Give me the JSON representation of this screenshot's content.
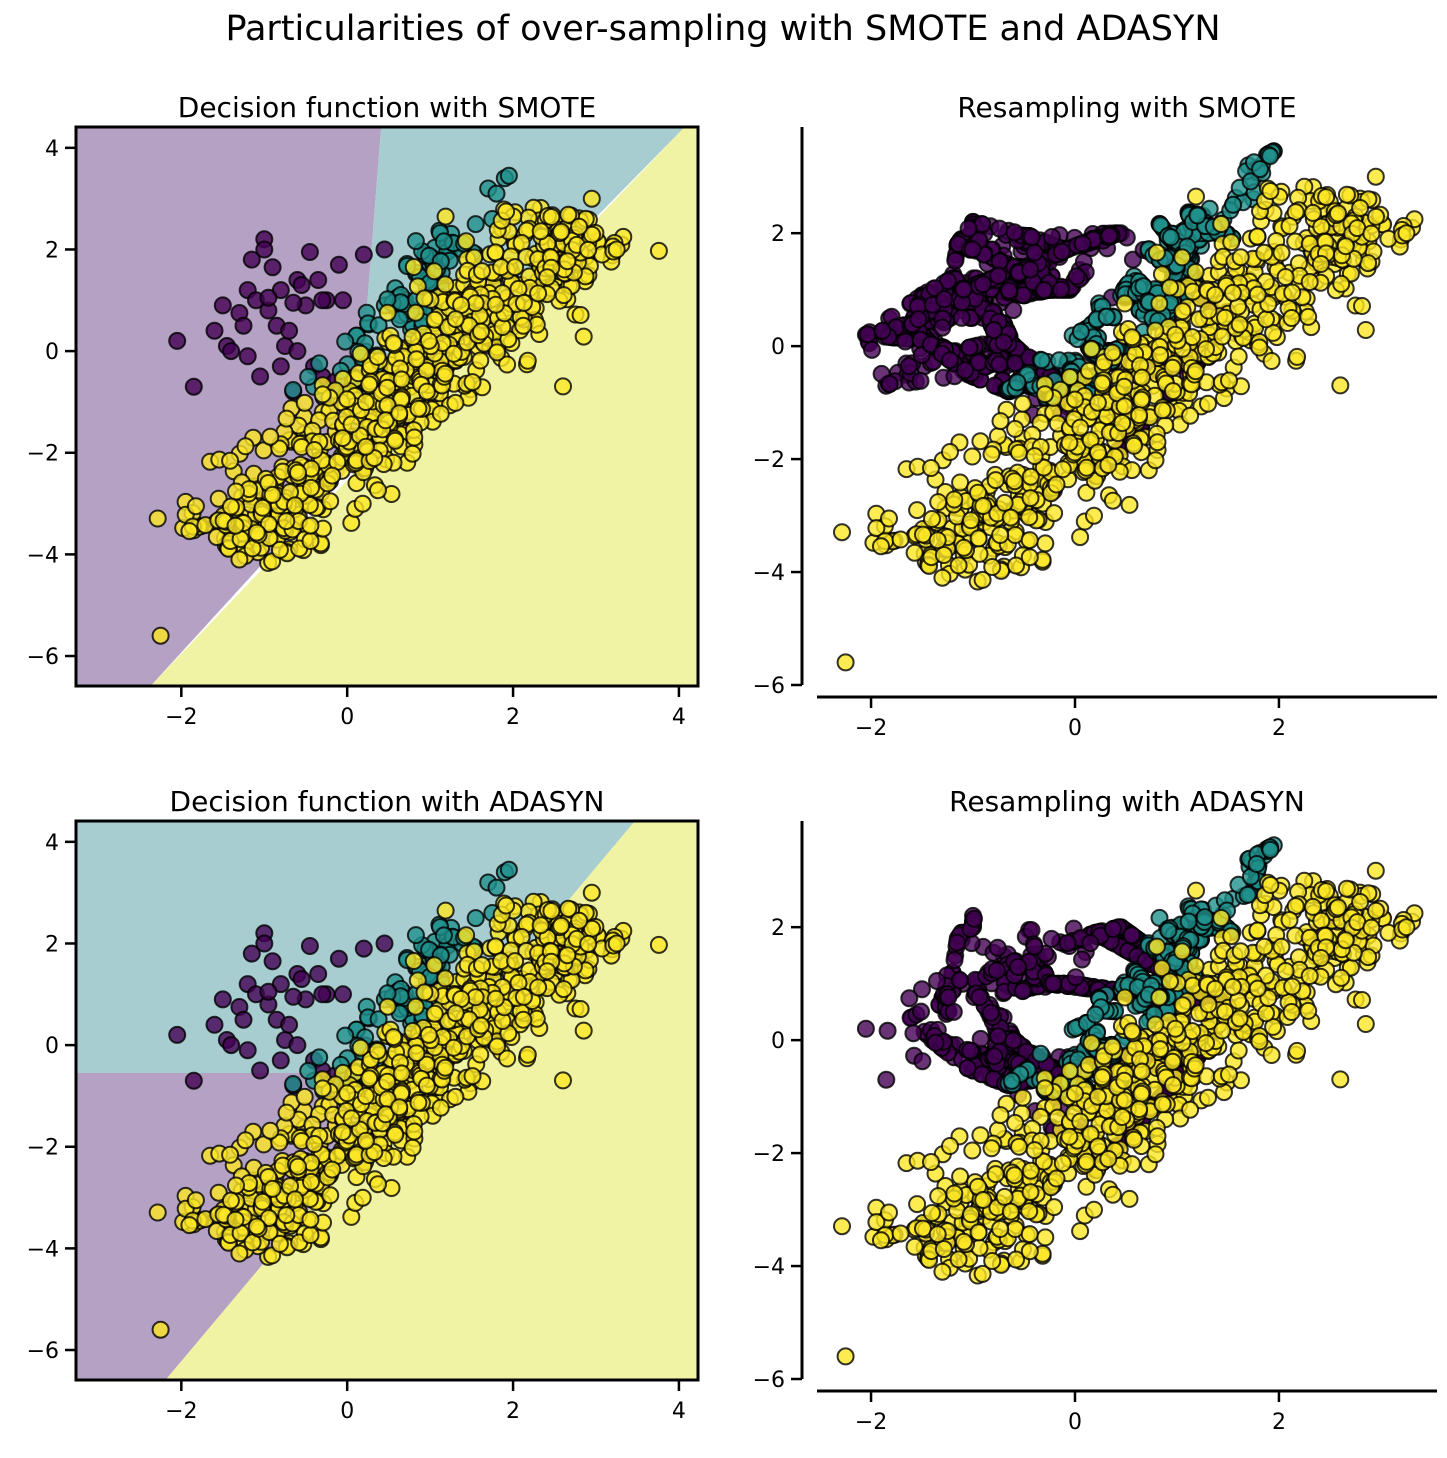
{
  "figure_title": "Particularities of over-sampling with SMOTE and ADASYN",
  "colors": {
    "class0": "#440154",
    "class1": "#21918c",
    "class2": "#fde725",
    "region0": "#b4a1c4",
    "region1": "#a7cdd0",
    "region2": "#f0f3a3",
    "edge": "#000000"
  },
  "chart_data": [
    {
      "type": "scatter",
      "kind": "decision",
      "title": "Decision function with SMOTE",
      "sampler": "none",
      "xlim": [
        -3.27,
        4.23
      ],
      "ylim": [
        -6.59,
        4.41
      ],
      "xticks": [
        {
          "v": -2,
          "label": "−2"
        },
        {
          "v": 0,
          "label": "0"
        },
        {
          "v": 2,
          "label": "2"
        },
        {
          "v": 4,
          "label": "4"
        }
      ],
      "yticks": [
        {
          "v": 4,
          "label": "4"
        },
        {
          "v": 2,
          "label": "2"
        },
        {
          "v": 0,
          "label": "0"
        },
        {
          "v": -2,
          "label": "−2"
        },
        {
          "v": -4,
          "label": "−4"
        },
        {
          "v": -6,
          "label": "−6"
        }
      ],
      "regions": [
        {
          "cls": 0,
          "polygon": [
            [
              -3.27,
              4.41
            ],
            [
              0.41,
              4.41
            ],
            [
              0.09,
              -2.2
            ],
            [
              -2.37,
              -6.59
            ],
            [
              -3.27,
              -6.59
            ]
          ]
        },
        {
          "cls": 1,
          "polygon": [
            [
              0.41,
              4.41
            ],
            [
              4.07,
              4.41
            ],
            [
              0.09,
              -2.2
            ]
          ]
        },
        {
          "cls": 2,
          "polygon": [
            [
              4.07,
              4.41
            ],
            [
              4.23,
              4.41
            ],
            [
              4.23,
              -6.59
            ],
            [
              -2.37,
              -6.59
            ]
          ]
        }
      ]
    },
    {
      "type": "scatter",
      "kind": "resample",
      "title": "Resampling with SMOTE",
      "sampler": "smote",
      "xlim": [
        -2.53,
        3.55
      ],
      "ylim": [
        -6.0,
        3.88
      ],
      "xticks": [
        {
          "v": -2,
          "label": "−2"
        },
        {
          "v": 0,
          "label": "0"
        },
        {
          "v": 2,
          "label": "2"
        }
      ],
      "yticks": [
        {
          "v": 2,
          "label": "2"
        },
        {
          "v": 0,
          "label": "0"
        },
        {
          "v": -2,
          "label": "−2"
        },
        {
          "v": -4,
          "label": "−4"
        },
        {
          "v": -6,
          "label": "−6"
        }
      ]
    },
    {
      "type": "scatter",
      "kind": "decision",
      "title": "Decision function with ADASYN",
      "sampler": "none",
      "xlim": [
        -3.27,
        4.23
      ],
      "ylim": [
        -6.59,
        4.41
      ],
      "xticks": [
        {
          "v": -2,
          "label": "−2"
        },
        {
          "v": 0,
          "label": "0"
        },
        {
          "v": 2,
          "label": "2"
        },
        {
          "v": 4,
          "label": "4"
        }
      ],
      "yticks": [
        {
          "v": 4,
          "label": "4"
        },
        {
          "v": 2,
          "label": "2"
        },
        {
          "v": 0,
          "label": "0"
        },
        {
          "v": -2,
          "label": "−2"
        },
        {
          "v": -4,
          "label": "−4"
        },
        {
          "v": -6,
          "label": "−6"
        }
      ],
      "regions": [
        {
          "cls": 1,
          "polygon": [
            [
              -3.27,
              4.41
            ],
            [
              3.47,
              4.41
            ],
            [
              0.92,
              -0.55
            ],
            [
              -3.27,
              -0.55
            ]
          ]
        },
        {
          "cls": 0,
          "polygon": [
            [
              -3.27,
              -0.55
            ],
            [
              0.92,
              -0.55
            ],
            [
              -2.19,
              -6.59
            ],
            [
              -3.27,
              -6.59
            ]
          ]
        },
        {
          "cls": 2,
          "polygon": [
            [
              3.47,
              4.41
            ],
            [
              4.23,
              4.41
            ],
            [
              4.23,
              -6.59
            ],
            [
              -2.19,
              -6.59
            ]
          ]
        }
      ]
    },
    {
      "type": "scatter",
      "kind": "resample",
      "title": "Resampling with ADASYN",
      "sampler": "adasyn",
      "xlim": [
        -2.53,
        3.55
      ],
      "ylim": [
        -6.0,
        3.88
      ],
      "xticks": [
        {
          "v": -2,
          "label": "−2"
        },
        {
          "v": 0,
          "label": "0"
        },
        {
          "v": 2,
          "label": "2"
        }
      ],
      "yticks": [
        {
          "v": 2,
          "label": "2"
        },
        {
          "v": 0,
          "label": "0"
        },
        {
          "v": -2,
          "label": "−2"
        },
        {
          "v": -4,
          "label": "−4"
        },
        {
          "v": -6,
          "label": "−6"
        }
      ]
    }
  ],
  "dataset": {
    "class0_points": [
      [
        -2.05,
        0.2
      ],
      [
        -1.85,
        -0.7
      ],
      [
        -1.6,
        0.4
      ],
      [
        -1.5,
        0.9
      ],
      [
        -1.45,
        0.1
      ],
      [
        -1.4,
        0.0
      ],
      [
        -1.3,
        0.75
      ],
      [
        -1.25,
        0.5
      ],
      [
        -1.2,
        1.2
      ],
      [
        -1.15,
        1.8
      ],
      [
        -1.1,
        1.0
      ],
      [
        -1.05,
        -0.5
      ],
      [
        -1.0,
        2.2
      ],
      [
        -1.0,
        2.0
      ],
      [
        -0.95,
        0.8
      ],
      [
        -0.9,
        1.65
      ],
      [
        -0.85,
        0.5
      ],
      [
        -0.8,
        1.2
      ],
      [
        -0.75,
        0.1
      ],
      [
        -0.7,
        0.4
      ],
      [
        -0.65,
        -0.8
      ],
      [
        -0.6,
        1.4
      ],
      [
        -0.55,
        1.3
      ],
      [
        -0.5,
        0.9
      ],
      [
        -0.45,
        1.95
      ],
      [
        -0.4,
        -0.3
      ],
      [
        -0.35,
        1.4
      ],
      [
        -0.3,
        -0.5
      ],
      [
        -0.25,
        1.0
      ],
      [
        -0.1,
        1.7
      ],
      [
        -0.05,
        1.0
      ],
      [
        0.2,
        1.9
      ],
      [
        0.45,
        2.0
      ],
      [
        -0.8,
        -0.3
      ],
      [
        -0.6,
        0.0
      ],
      [
        -1.2,
        -0.1
      ],
      [
        -0.95,
        1.05
      ],
      [
        -0.65,
        0.95
      ],
      [
        -0.3,
        1.0
      ],
      [
        -0.15,
        -0.6
      ],
      [
        0.65,
        -1.4
      ],
      [
        0.2,
        -2.3
      ],
      [
        1.5,
        0.6
      ],
      [
        1.2,
        -0.3
      ]
    ],
    "class1_extra": [
      [
        1.7,
        3.2
      ],
      [
        1.9,
        3.4
      ],
      [
        1.95,
        3.45
      ],
      [
        1.8,
        3.1
      ],
      [
        1.75,
        2.6
      ],
      [
        1.55,
        2.5
      ]
    ],
    "class1_band": {
      "from": [
        -0.3,
        -1.0
      ],
      "to": [
        1.45,
        2.35
      ],
      "spread": 0.18,
      "count": 110,
      "seed": 7
    },
    "class2_band": {
      "from": [
        -1.45,
        -3.9
      ],
      "to": [
        2.9,
        2.6
      ],
      "spread": 0.42,
      "count": 700,
      "seed": 11
    },
    "class2_extra": [
      [
        -2.25,
        -5.6
      ],
      [
        3.25,
        2.0
      ],
      [
        2.95,
        3.0
      ],
      [
        -1.3,
        -4.1
      ]
    ],
    "synthetic": {
      "smote_class0": 900,
      "smote_class1": 500,
      "adasyn_class0": 900,
      "adasyn_class1": 500,
      "seed": 23
    }
  }
}
